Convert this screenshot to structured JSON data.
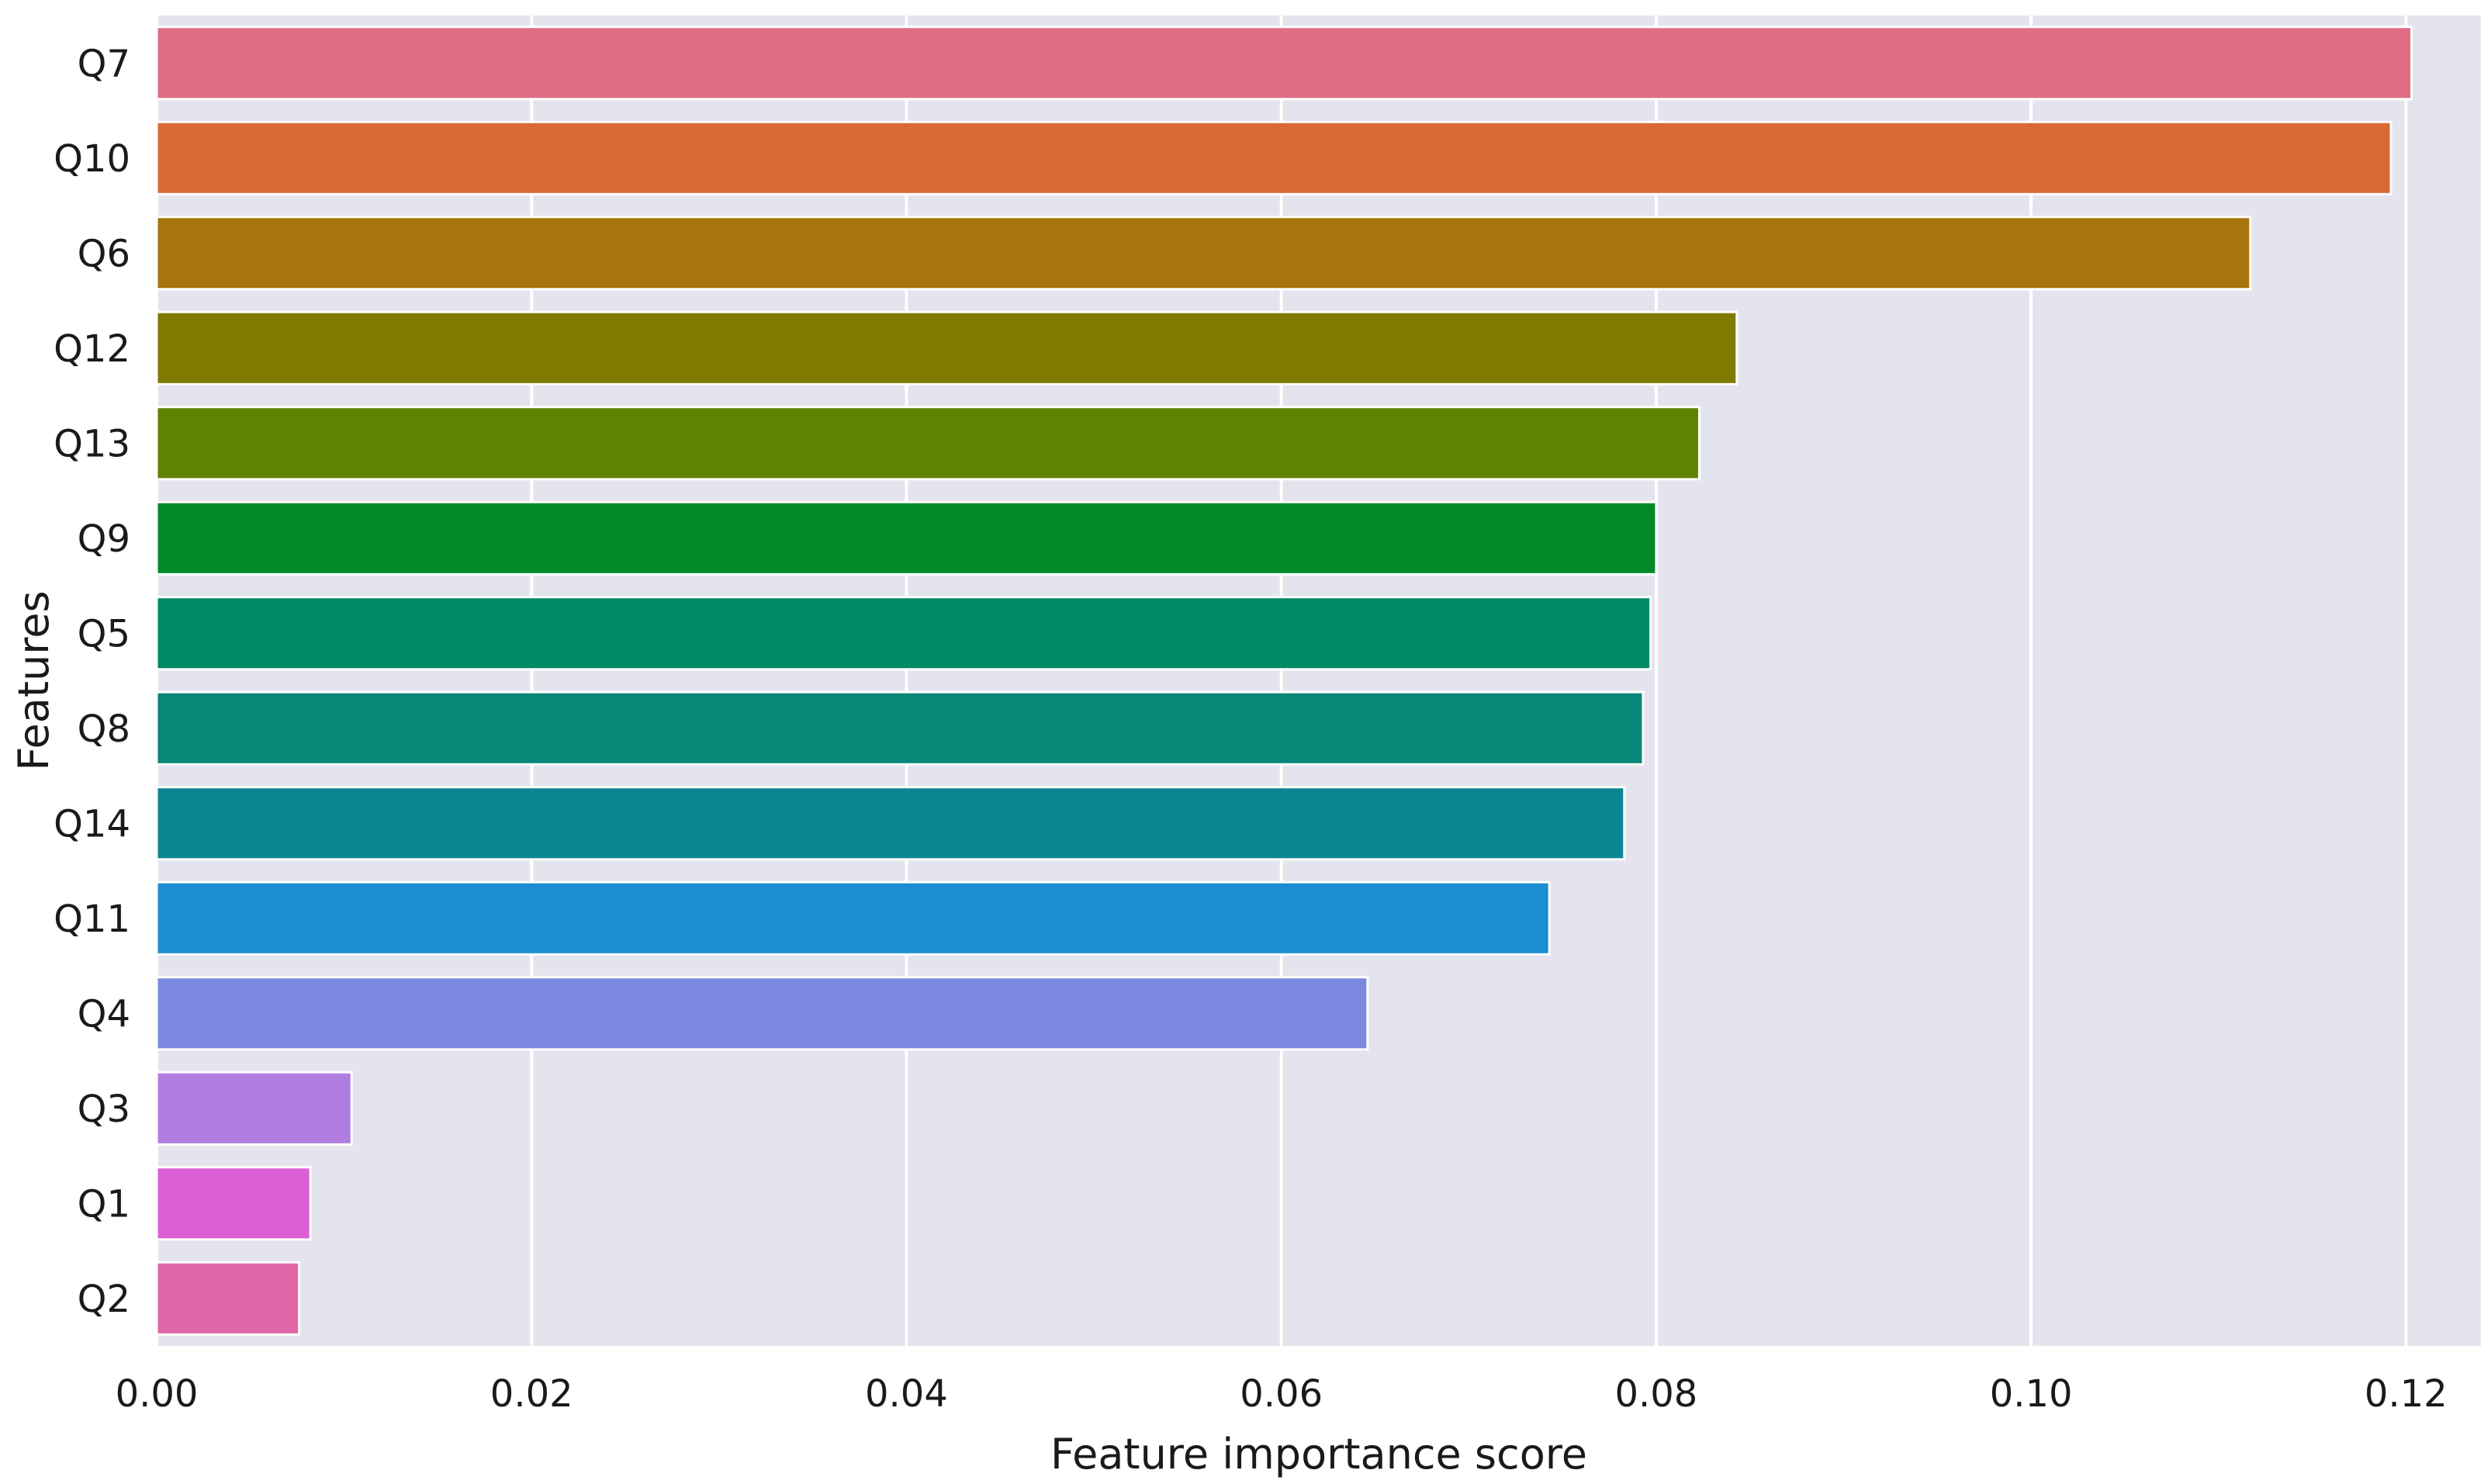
{
  "chart_data": {
    "type": "bar",
    "orientation": "horizontal",
    "xlabel": "Feature importance score",
    "ylabel": "Features",
    "xlim": [
      0.0,
      0.124
    ],
    "x_ticks": [
      "0.00",
      "0.02",
      "0.04",
      "0.06",
      "0.08",
      "0.10",
      "0.12"
    ],
    "grid": true,
    "background": "#e4e4ee",
    "categories": [
      "Q7",
      "Q10",
      "Q6",
      "Q12",
      "Q13",
      "Q9",
      "Q5",
      "Q8",
      "Q14",
      "Q11",
      "Q4",
      "Q3",
      "Q1",
      "Q2"
    ],
    "values": [
      0.1203,
      0.1192,
      0.1117,
      0.0843,
      0.0823,
      0.08,
      0.0797,
      0.0793,
      0.0783,
      0.0743,
      0.0646,
      0.0104,
      0.0082,
      0.0076
    ],
    "colors": [
      "#e06d84",
      "#d96a35",
      "#a8740e",
      "#807a00",
      "#5f8200",
      "#028928",
      "#038a66",
      "#068778",
      "#0d8693",
      "#1a8ece",
      "#7b8ae0",
      "#b17ce0",
      "#dc5fd6",
      "#e066a8"
    ]
  }
}
